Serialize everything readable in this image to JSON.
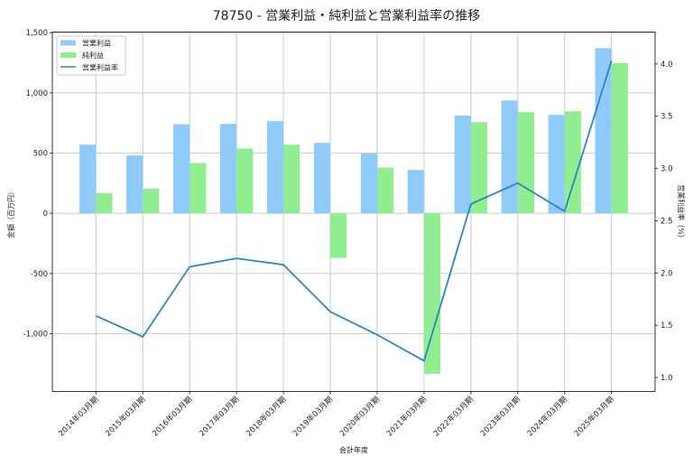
{
  "chart_data": {
    "type": "bar",
    "title": "78750 - 営業利益・純利益と営業利益率の推移",
    "xlabel": "会計年度",
    "ylabel": "金額（百万円）",
    "y2label": "営業利益率（%）",
    "categories": [
      "2014年03月期",
      "2015年03月期",
      "2016年03月期",
      "2017年03月期",
      "2018年03月期",
      "2019年03月期",
      "2020年03月期",
      "2021年03月期",
      "2022年03月期",
      "2023年03月期",
      "2024年03月期",
      "2025年03月期"
    ],
    "series": [
      {
        "name": "営業利益",
        "type": "bar",
        "axis": "left",
        "color": "#90caf9",
        "values": [
          570,
          480,
          740,
          742,
          765,
          585,
          497,
          360,
          812,
          937,
          817,
          1372
        ]
      },
      {
        "name": "純利益",
        "type": "bar",
        "axis": "left",
        "color": "#90ee90",
        "values": [
          168,
          205,
          418,
          537,
          570,
          -370,
          380,
          -1335,
          757,
          840,
          847,
          1247
        ]
      },
      {
        "name": "営業利益率",
        "type": "line",
        "axis": "right",
        "color": "#2e86c1",
        "values": [
          1.59,
          1.39,
          2.06,
          2.14,
          2.08,
          1.63,
          1.41,
          1.16,
          2.66,
          2.86,
          2.59,
          4.03
        ]
      }
    ],
    "ylim": [
      -1480,
      1505
    ],
    "y2lim": [
      0.867,
      4.305
    ],
    "yticks": [
      -1000,
      -500,
      0,
      500,
      1000,
      1500
    ],
    "ytick_labels": [
      "-1,000",
      "-500",
      "0",
      "500",
      "1,000",
      "1,500"
    ],
    "y2ticks": [
      1.0,
      1.5,
      2.0,
      2.5,
      3.0,
      3.5,
      4.0
    ],
    "y2tick_labels": [
      "1.0",
      "1.5",
      "2.0",
      "2.5",
      "3.0",
      "3.5",
      "4.0"
    ],
    "grid": true,
    "legend_position": "top-left"
  }
}
